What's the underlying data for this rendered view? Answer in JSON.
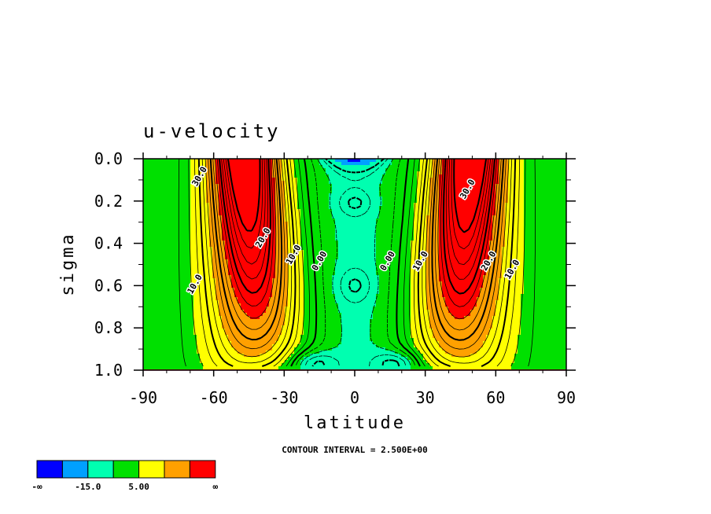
{
  "chart_data": {
    "type": "contour",
    "title": "u-velocity",
    "xlabel": "latitude",
    "ylabel": "sigma",
    "xlim": [
      -90,
      90
    ],
    "ylim": [
      0.0,
      1.0
    ],
    "y_inverted": true,
    "x_ticks": [
      "-90",
      "-60",
      "-30",
      "0",
      "30",
      "60",
      "90"
    ],
    "x_tick_values": [
      -90,
      -60,
      -30,
      0,
      30,
      60,
      90
    ],
    "y_ticks": [
      "0.0",
      "0.2",
      "0.4",
      "0.6",
      "0.8",
      "1.0"
    ],
    "y_tick_values": [
      0.0,
      0.2,
      0.4,
      0.6,
      0.8,
      1.0
    ],
    "contour_interval_text": "CONTOUR INTERVAL = 2.500E+00",
    "contour_interval": 2.5,
    "contour_labels": [
      {
        "text": "30.0",
        "lat": -65,
        "sigma": 0.09
      },
      {
        "text": "20.0",
        "lat": -38,
        "sigma": 0.38
      },
      {
        "text": "10.0",
        "lat": -25,
        "sigma": 0.46
      },
      {
        "text": "10.0",
        "lat": -67,
        "sigma": 0.6
      },
      {
        "text": "0.00",
        "lat": -14,
        "sigma": 0.49
      },
      {
        "text": "0.00",
        "lat": 15,
        "sigma": 0.49
      },
      {
        "text": "10.0",
        "lat": 29,
        "sigma": 0.49
      },
      {
        "text": "30.0",
        "lat": 49,
        "sigma": 0.15
      },
      {
        "text": "20.0",
        "lat": 58,
        "sigma": 0.49
      },
      {
        "text": "10.0",
        "lat": 68,
        "sigma": 0.53
      }
    ],
    "colorbar": {
      "colors": [
        "#0000ff",
        "#00a0ff",
        "#00ffb0",
        "#00e000",
        "#ffff00",
        "#ffa000",
        "#ff0000"
      ],
      "labels": [
        {
          "text": "-∞",
          "boundary": 0
        },
        {
          "text": "-15.0",
          "boundary": 2
        },
        {
          "text": "5.00",
          "boundary": 4
        },
        {
          "text": "∞",
          "boundary": 7
        }
      ]
    },
    "fill_levels": [
      {
        "min": -1000,
        "max": -25,
        "color": "#0000ff"
      },
      {
        "min": -25,
        "max": -15,
        "color": "#00a0ff"
      },
      {
        "min": -15,
        "max": -5,
        "color": "#00ffb0"
      },
      {
        "min": -5,
        "max": 5,
        "color": "#00e000"
      },
      {
        "min": 5,
        "max": 15,
        "color": "#ffff00"
      },
      {
        "min": 15,
        "max": 25,
        "color": "#ffa000"
      },
      {
        "min": 25,
        "max": 1000,
        "color": "#ff0000"
      }
    ]
  }
}
